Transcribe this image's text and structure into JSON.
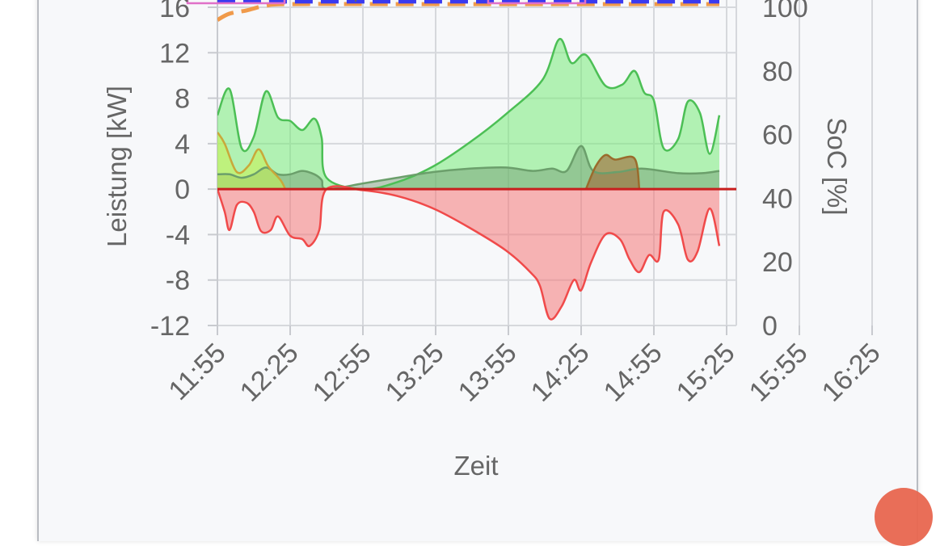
{
  "chart_data": {
    "type": "area",
    "xlabel": "Zeit",
    "ylabel_left": "Leistung [kW]",
    "ylabel_right": "SoC [%]",
    "x_ticks": [
      "11:55",
      "12:25",
      "12:55",
      "13:25",
      "13:55",
      "14:25",
      "14:55",
      "15:25",
      "15:55",
      "16:25"
    ],
    "y_left_ticks": [
      "-12",
      "-8",
      "-4",
      "0",
      "4",
      "8",
      "12",
      "16"
    ],
    "y_right_ticks": [
      "0",
      "20",
      "40",
      "60",
      "80",
      "100"
    ],
    "x_range_min": [
      0,
      147
    ],
    "ylim_left": [
      -12,
      16
    ],
    "ylim_right": [
      0,
      100
    ],
    "grid": true,
    "series": [
      {
        "color": "#4cbf55",
        "fill": "rgba(120,235,120,0.55)",
        "axis": "left",
        "points": [
          [
            0,
            6.5
          ],
          [
            5,
            8.8
          ],
          [
            10,
            3.6
          ],
          [
            15,
            4.6
          ],
          [
            20,
            8.6
          ],
          [
            25,
            6.3
          ],
          [
            30,
            6.0
          ],
          [
            35,
            5.2
          ],
          [
            40,
            6.2
          ],
          [
            43,
            4.5
          ],
          [
            45,
            1.0
          ],
          [
            60,
            0.0
          ],
          [
            74,
            0.6
          ],
          [
            89,
            2.0
          ],
          [
            104,
            4.1
          ],
          [
            119,
            6.6
          ],
          [
            134,
            9.6
          ],
          [
            141,
            13.2
          ],
          [
            146,
            11.1
          ],
          [
            152,
            11.8
          ],
          [
            160,
            9.1
          ],
          [
            167,
            9.2
          ],
          [
            172,
            10.4
          ],
          [
            176,
            8.5
          ],
          [
            180,
            7.8
          ],
          [
            184,
            3.6
          ],
          [
            190,
            4.4
          ],
          [
            194,
            7.7
          ],
          [
            199,
            6.7
          ],
          [
            203,
            3.1
          ],
          [
            207,
            6.5
          ]
        ]
      },
      {
        "color": "#6b9f6b",
        "fill": "rgba(110,150,110,0.45)",
        "axis": "left",
        "points": [
          [
            0,
            1.3
          ],
          [
            5,
            1.3
          ],
          [
            10,
            1.0
          ],
          [
            15,
            1.3
          ],
          [
            20,
            1.9
          ],
          [
            25,
            1.3
          ],
          [
            30,
            1.3
          ],
          [
            35,
            1.6
          ],
          [
            40,
            1.3
          ],
          [
            43,
            0.8
          ],
          [
            45,
            0.0
          ],
          [
            60,
            0.5
          ],
          [
            74,
            1.0
          ],
          [
            89,
            1.5
          ],
          [
            104,
            1.8
          ],
          [
            119,
            1.9
          ],
          [
            130,
            1.6
          ],
          [
            138,
            1.8
          ],
          [
            144,
            1.6
          ],
          [
            150,
            3.8
          ],
          [
            155,
            1.6
          ],
          [
            165,
            1.5
          ],
          [
            175,
            1.8
          ],
          [
            190,
            1.4
          ],
          [
            200,
            1.4
          ],
          [
            207,
            1.6
          ]
        ]
      },
      {
        "color": "#c9a83a",
        "fill": "rgba(200,240,80,0.55)",
        "axis": "left",
        "points": [
          [
            0,
            5.0
          ],
          [
            3,
            4.0
          ],
          [
            8,
            1.5
          ],
          [
            13,
            2.1
          ],
          [
            17,
            3.5
          ],
          [
            21,
            2.0
          ],
          [
            26,
            0.8
          ],
          [
            28,
            0.0
          ]
        ]
      },
      {
        "color": "#9a6b2c",
        "fill": "rgba(160,110,60,0.65)",
        "axis": "left",
        "points": [
          [
            152,
            0.0
          ],
          [
            156,
            2.0
          ],
          [
            160,
            3.0
          ],
          [
            164,
            2.6
          ],
          [
            172,
            2.7
          ],
          [
            174,
            0.0
          ]
        ]
      },
      {
        "color": "#f04a4a",
        "fill": "rgba(245,120,120,0.55)",
        "axis": "left",
        "points": [
          [
            0,
            0.0
          ],
          [
            3,
            -2.0
          ],
          [
            5,
            -3.6
          ],
          [
            8,
            -1.4
          ],
          [
            12,
            -1.2
          ],
          [
            15,
            -2.0
          ],
          [
            18,
            -3.7
          ],
          [
            22,
            -3.6
          ],
          [
            25,
            -2.4
          ],
          [
            30,
            -4.1
          ],
          [
            35,
            -4.4
          ],
          [
            38,
            -5.0
          ],
          [
            42,
            -3.6
          ],
          [
            45,
            0.0
          ],
          [
            60,
            -0.1
          ],
          [
            74,
            -0.6
          ],
          [
            89,
            -1.7
          ],
          [
            104,
            -3.4
          ],
          [
            119,
            -5.4
          ],
          [
            129,
            -7.3
          ],
          [
            133,
            -8.5
          ],
          [
            137,
            -11.4
          ],
          [
            142,
            -10.3
          ],
          [
            147,
            -8.0
          ],
          [
            150,
            -8.9
          ],
          [
            154,
            -6.5
          ],
          [
            160,
            -4.0
          ],
          [
            166,
            -4.4
          ],
          [
            170,
            -6.2
          ],
          [
            174,
            -7.3
          ],
          [
            178,
            -5.8
          ],
          [
            182,
            -6.2
          ],
          [
            184,
            -2.0
          ],
          [
            190,
            -3.1
          ],
          [
            194,
            -6.2
          ],
          [
            198,
            -5.5
          ],
          [
            203,
            -1.7
          ],
          [
            207,
            -5.0
          ]
        ]
      },
      {
        "color": "#f09a4a",
        "axis": "right",
        "dashed": true,
        "points": [
          [
            0,
            96
          ],
          [
            5,
            98
          ],
          [
            12,
            99
          ],
          [
            20,
            100.5
          ],
          [
            30,
            101
          ],
          [
            80,
            101
          ],
          [
            207,
            101
          ]
        ]
      },
      {
        "color": "#3a3af0",
        "axis": "right",
        "dashed": true,
        "points": [
          [
            0,
            101.8
          ],
          [
            207,
            101.8
          ]
        ]
      }
    ]
  },
  "colors": {
    "card_bg": "#f7f8fa",
    "grid": "#d6d8dc",
    "zero_line": "#c81e1e",
    "legend_pink": "#e070c8",
    "fab": "#e8664f"
  }
}
